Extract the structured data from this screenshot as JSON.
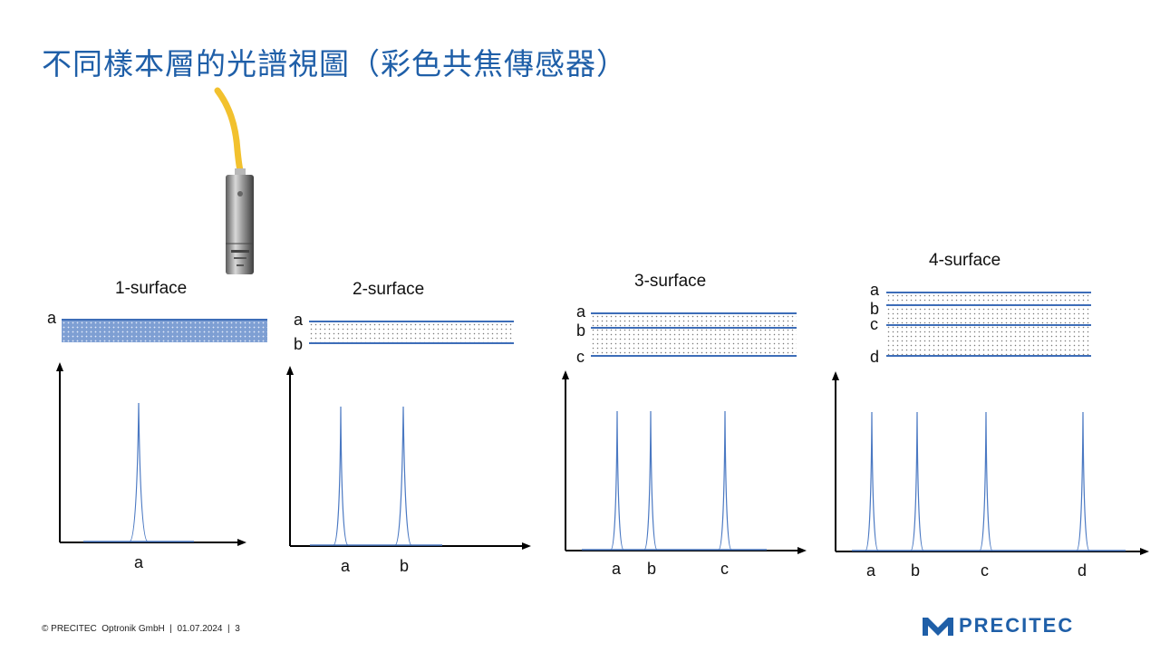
{
  "title": "不同樣本層的光譜視圖（彩色共焦傳感器）",
  "panels": [
    {
      "title": "1-surface",
      "layers": [
        "a"
      ],
      "peaks": [
        "a"
      ]
    },
    {
      "title": "2-surface",
      "layers": [
        "a",
        "b"
      ],
      "peaks": [
        "a",
        "b"
      ]
    },
    {
      "title": "3-surface",
      "layers": [
        "a",
        "b",
        "c"
      ],
      "peaks": [
        "a",
        "b",
        "c"
      ]
    },
    {
      "title": "4-surface",
      "layers": [
        "a",
        "b",
        "c",
        "d"
      ],
      "peaks": [
        "a",
        "b",
        "c",
        "d"
      ]
    }
  ],
  "footer": "© PRECITEC  Optronik GmbH  |  01.07.2024  |  3",
  "logo": "PRECITEC",
  "colors": {
    "title": "#1f5fa8",
    "line": "#3d6db8",
    "spectrum": "#4a78c2",
    "cable": "#f2c12e"
  },
  "icons": [
    "chromatic-confocal-sensor-icon",
    "precitec-logo-icon"
  ]
}
